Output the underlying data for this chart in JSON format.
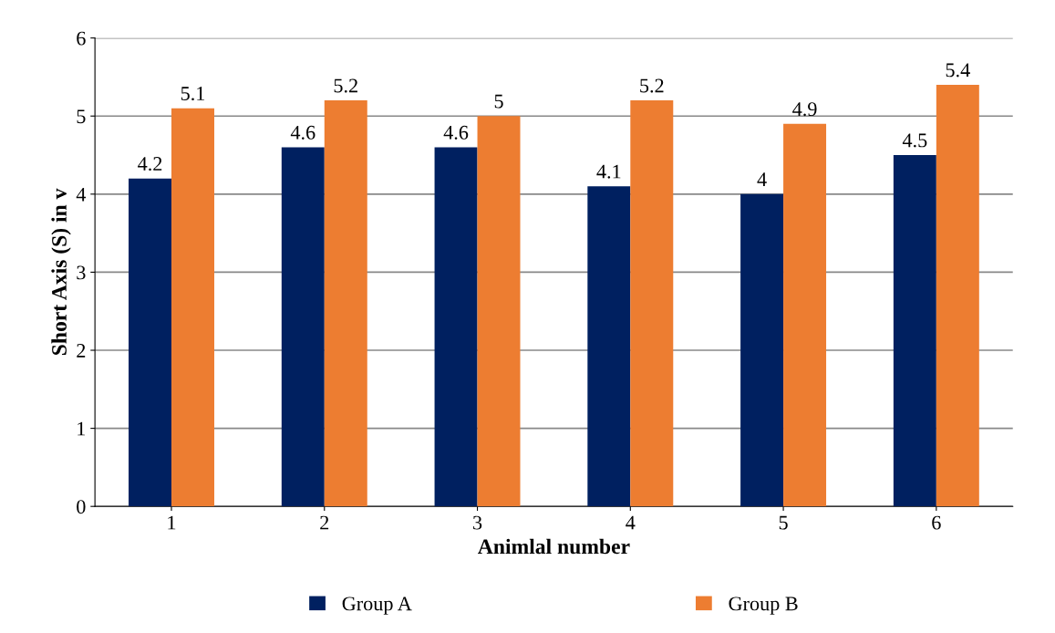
{
  "chart_data": {
    "type": "bar",
    "xlabel": "Animlal number",
    "ylabel": "Short Axis (S) in v",
    "categories": [
      "1",
      "2",
      "3",
      "4",
      "5",
      "6"
    ],
    "series": [
      {
        "name": "Group A",
        "color": "#002060",
        "values": [
          4.2,
          4.6,
          4.6,
          4.1,
          4,
          4.5
        ]
      },
      {
        "name": "Group B",
        "color": "#ed7d31",
        "values": [
          5.1,
          5.2,
          5,
          5.2,
          4.9,
          5.4
        ]
      }
    ],
    "ylim": [
      0,
      6
    ],
    "yticks": [
      0,
      1,
      2,
      3,
      4,
      5,
      6
    ],
    "grid": "y",
    "legend": "bottom",
    "data_labels": true
  }
}
